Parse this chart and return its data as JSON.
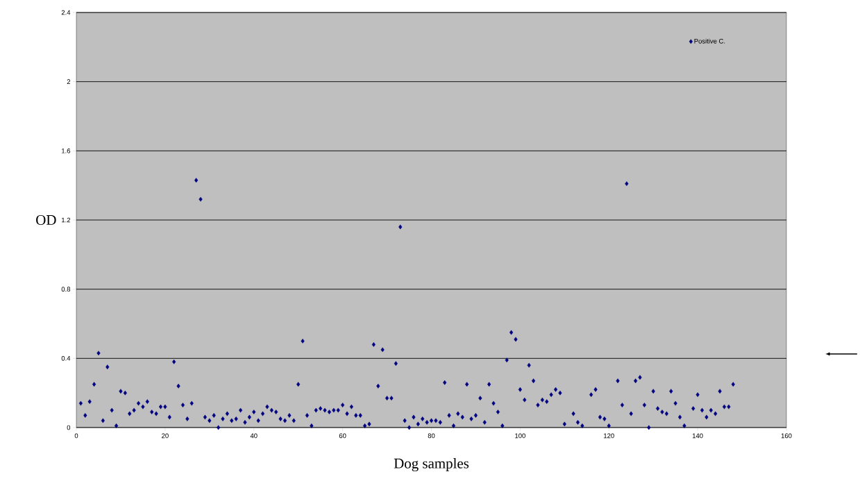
{
  "chart_data": {
    "type": "scatter",
    "xlabel": "Dog samples",
    "ylabel": "OD",
    "x": [
      1,
      2,
      3,
      4,
      5,
      6,
      7,
      8,
      9,
      10,
      11,
      12,
      13,
      14,
      15,
      16,
      17,
      18,
      19,
      20,
      21,
      22,
      23,
      24,
      25,
      26,
      27,
      28,
      29,
      30,
      31,
      32,
      33,
      34,
      35,
      36,
      37,
      38,
      39,
      40,
      41,
      42,
      43,
      44,
      45,
      46,
      47,
      48,
      49,
      50,
      51,
      52,
      53,
      54,
      55,
      56,
      57,
      58,
      59,
      60,
      61,
      62,
      63,
      64,
      65,
      66,
      67,
      68,
      69,
      70,
      71,
      72,
      73,
      74,
      75,
      76,
      77,
      78,
      79,
      80,
      81,
      82,
      83,
      84,
      85,
      86,
      87,
      88,
      89,
      90,
      91,
      92,
      93,
      94,
      95,
      96,
      97,
      98,
      99,
      100,
      101,
      102,
      103,
      104,
      105,
      106,
      107,
      108,
      109,
      110,
      112,
      113,
      114,
      116,
      117,
      118,
      119,
      120,
      122,
      123,
      124,
      125,
      126,
      127,
      128,
      129,
      130,
      131,
      132,
      133,
      134,
      135,
      136,
      137,
      139,
      140,
      141,
      142,
      143,
      144,
      145,
      146,
      147,
      148
    ],
    "series": [
      {
        "name": "Positive C.",
        "color": "#000080",
        "values": [
          0.14,
          0.07,
          0.15,
          0.25,
          0.43,
          0.04,
          0.35,
          0.1,
          0.01,
          0.21,
          0.2,
          0.08,
          0.1,
          0.14,
          0.12,
          0.15,
          0.09,
          0.08,
          0.12,
          0.12,
          0.06,
          0.38,
          0.24,
          0.13,
          0.05,
          0.14,
          1.43,
          1.32,
          0.06,
          0.04,
          0.07,
          0.0,
          0.05,
          0.08,
          0.04,
          0.05,
          0.1,
          0.03,
          0.06,
          0.09,
          0.04,
          0.08,
          0.12,
          0.1,
          0.09,
          0.05,
          0.04,
          0.07,
          0.04,
          0.25,
          0.5,
          0.07,
          0.01,
          0.1,
          0.11,
          0.1,
          0.09,
          0.1,
          0.1,
          0.13,
          0.08,
          0.12,
          0.07,
          0.07,
          0.01,
          0.02,
          0.48,
          0.24,
          0.45,
          0.17,
          0.17,
          0.37,
          1.16,
          0.04,
          0.0,
          0.06,
          0.02,
          0.05,
          0.03,
          0.04,
          0.04,
          0.03,
          0.26,
          0.07,
          0.01,
          0.08,
          0.06,
          0.25,
          0.05,
          0.07,
          0.17,
          0.03,
          0.25,
          0.14,
          0.09,
          0.01,
          0.39,
          0.55,
          0.51,
          0.22,
          0.16,
          0.36,
          0.27,
          0.13,
          0.16,
          0.15,
          0.19,
          0.22,
          0.2,
          0.02,
          0.08,
          0.03,
          0.01,
          0.19,
          0.22,
          0.06,
          0.05,
          0.01,
          0.27,
          0.13,
          1.41,
          0.08,
          0.27,
          0.29,
          0.13,
          0.0,
          0.21,
          0.11,
          0.09,
          0.08,
          0.21,
          0.14,
          0.06,
          0.01,
          0.11,
          0.19,
          0.1,
          0.06,
          0.1,
          0.08,
          0.21,
          0.12,
          0.12,
          0.25
        ]
      }
    ],
    "xlim": [
      0,
      160
    ],
    "xticks": [
      0,
      20,
      40,
      60,
      80,
      100,
      120,
      140,
      160
    ],
    "ylim": [
      0,
      2.4
    ],
    "yticks": [
      0,
      0.4,
      0.8,
      1.2,
      1.6,
      2,
      2.4
    ],
    "grid": "y",
    "legend": "top right",
    "marker": "diamond"
  }
}
